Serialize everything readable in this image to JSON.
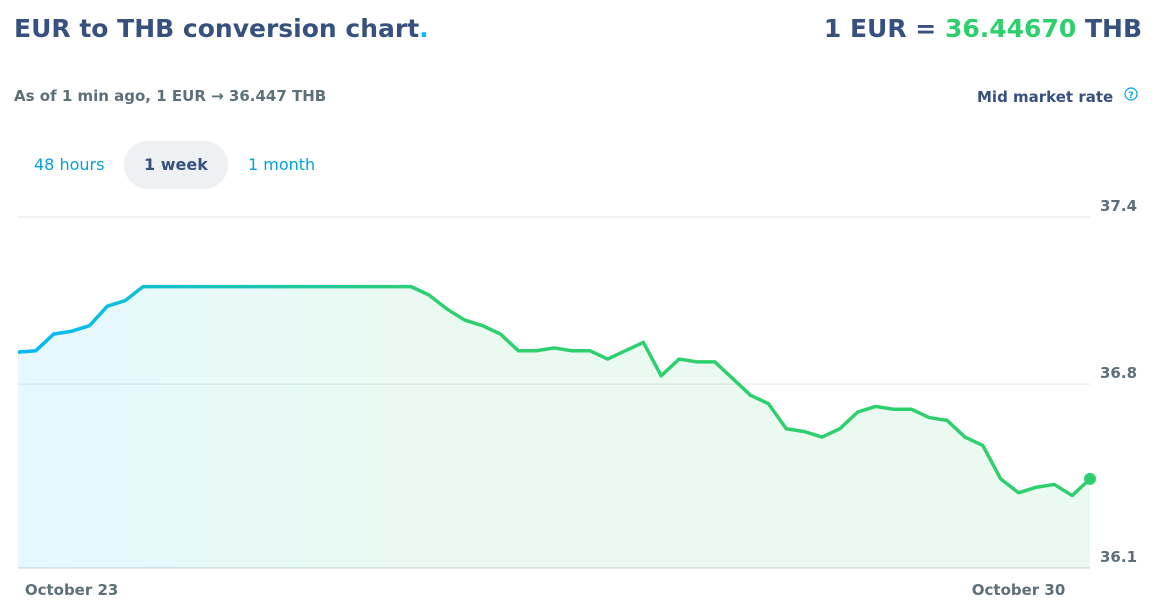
{
  "header": {
    "title": "EUR to THB conversion chart",
    "title_dot": ".",
    "rate_prefix": "1 EUR =",
    "rate_value": "36.44670",
    "rate_suffix": "THB",
    "subtitle": "As of 1 min ago, 1 EUR → 36.447 THB"
  },
  "tabs": [
    {
      "label": "48 hours",
      "selected": false
    },
    {
      "label": "1 week",
      "selected": true
    },
    {
      "label": "1 month",
      "selected": false
    }
  ],
  "help_icon": "?",
  "chart_data": {
    "type": "line",
    "categories": [
      null,
      null,
      null,
      "October 23",
      null,
      null,
      null,
      null,
      null,
      null,
      null,
      null,
      null,
      null,
      null,
      null,
      null,
      null,
      null,
      null,
      null,
      null,
      null,
      null,
      null,
      null,
      null,
      null,
      null,
      null,
      null,
      null,
      null,
      null,
      null,
      null,
      null,
      null,
      null,
      null,
      null,
      null,
      null,
      null,
      null,
      null,
      null,
      null,
      null,
      null,
      null,
      null,
      null,
      null,
      null,
      null,
      "October 30",
      null,
      null,
      null,
      null
    ],
    "series": [
      {
        "name": "Mid market rate",
        "color": [
          "#00b9ff",
          "#2ed06e"
        ],
        "values": [
          36.915,
          36.92,
          36.98,
          36.99,
          37.01,
          37.08,
          37.1,
          37.15,
          37.15,
          37.15,
          37.15,
          37.15,
          37.15,
          37.15,
          37.15,
          37.15,
          37.15,
          37.15,
          37.15,
          37.15,
          37.15,
          37.15,
          37.15,
          37.12,
          37.07,
          37.03,
          37.01,
          36.98,
          36.92,
          36.92,
          36.93,
          36.92,
          36.92,
          36.89,
          36.92,
          36.95,
          36.83,
          36.89,
          36.88,
          36.88,
          36.82,
          36.76,
          36.73,
          36.64,
          36.63,
          36.61,
          36.64,
          36.7,
          36.72,
          36.71,
          36.71,
          36.68,
          36.67,
          36.61,
          36.58,
          36.46,
          36.41,
          36.43,
          36.44,
          36.4,
          36.46
        ]
      }
    ],
    "ylim": [
      36.14,
      37.4
    ],
    "yticks": [
      37.4,
      36.8,
      {
        "value": 36.14,
        "label": "36.1"
      }
    ],
    "grid": true
  }
}
